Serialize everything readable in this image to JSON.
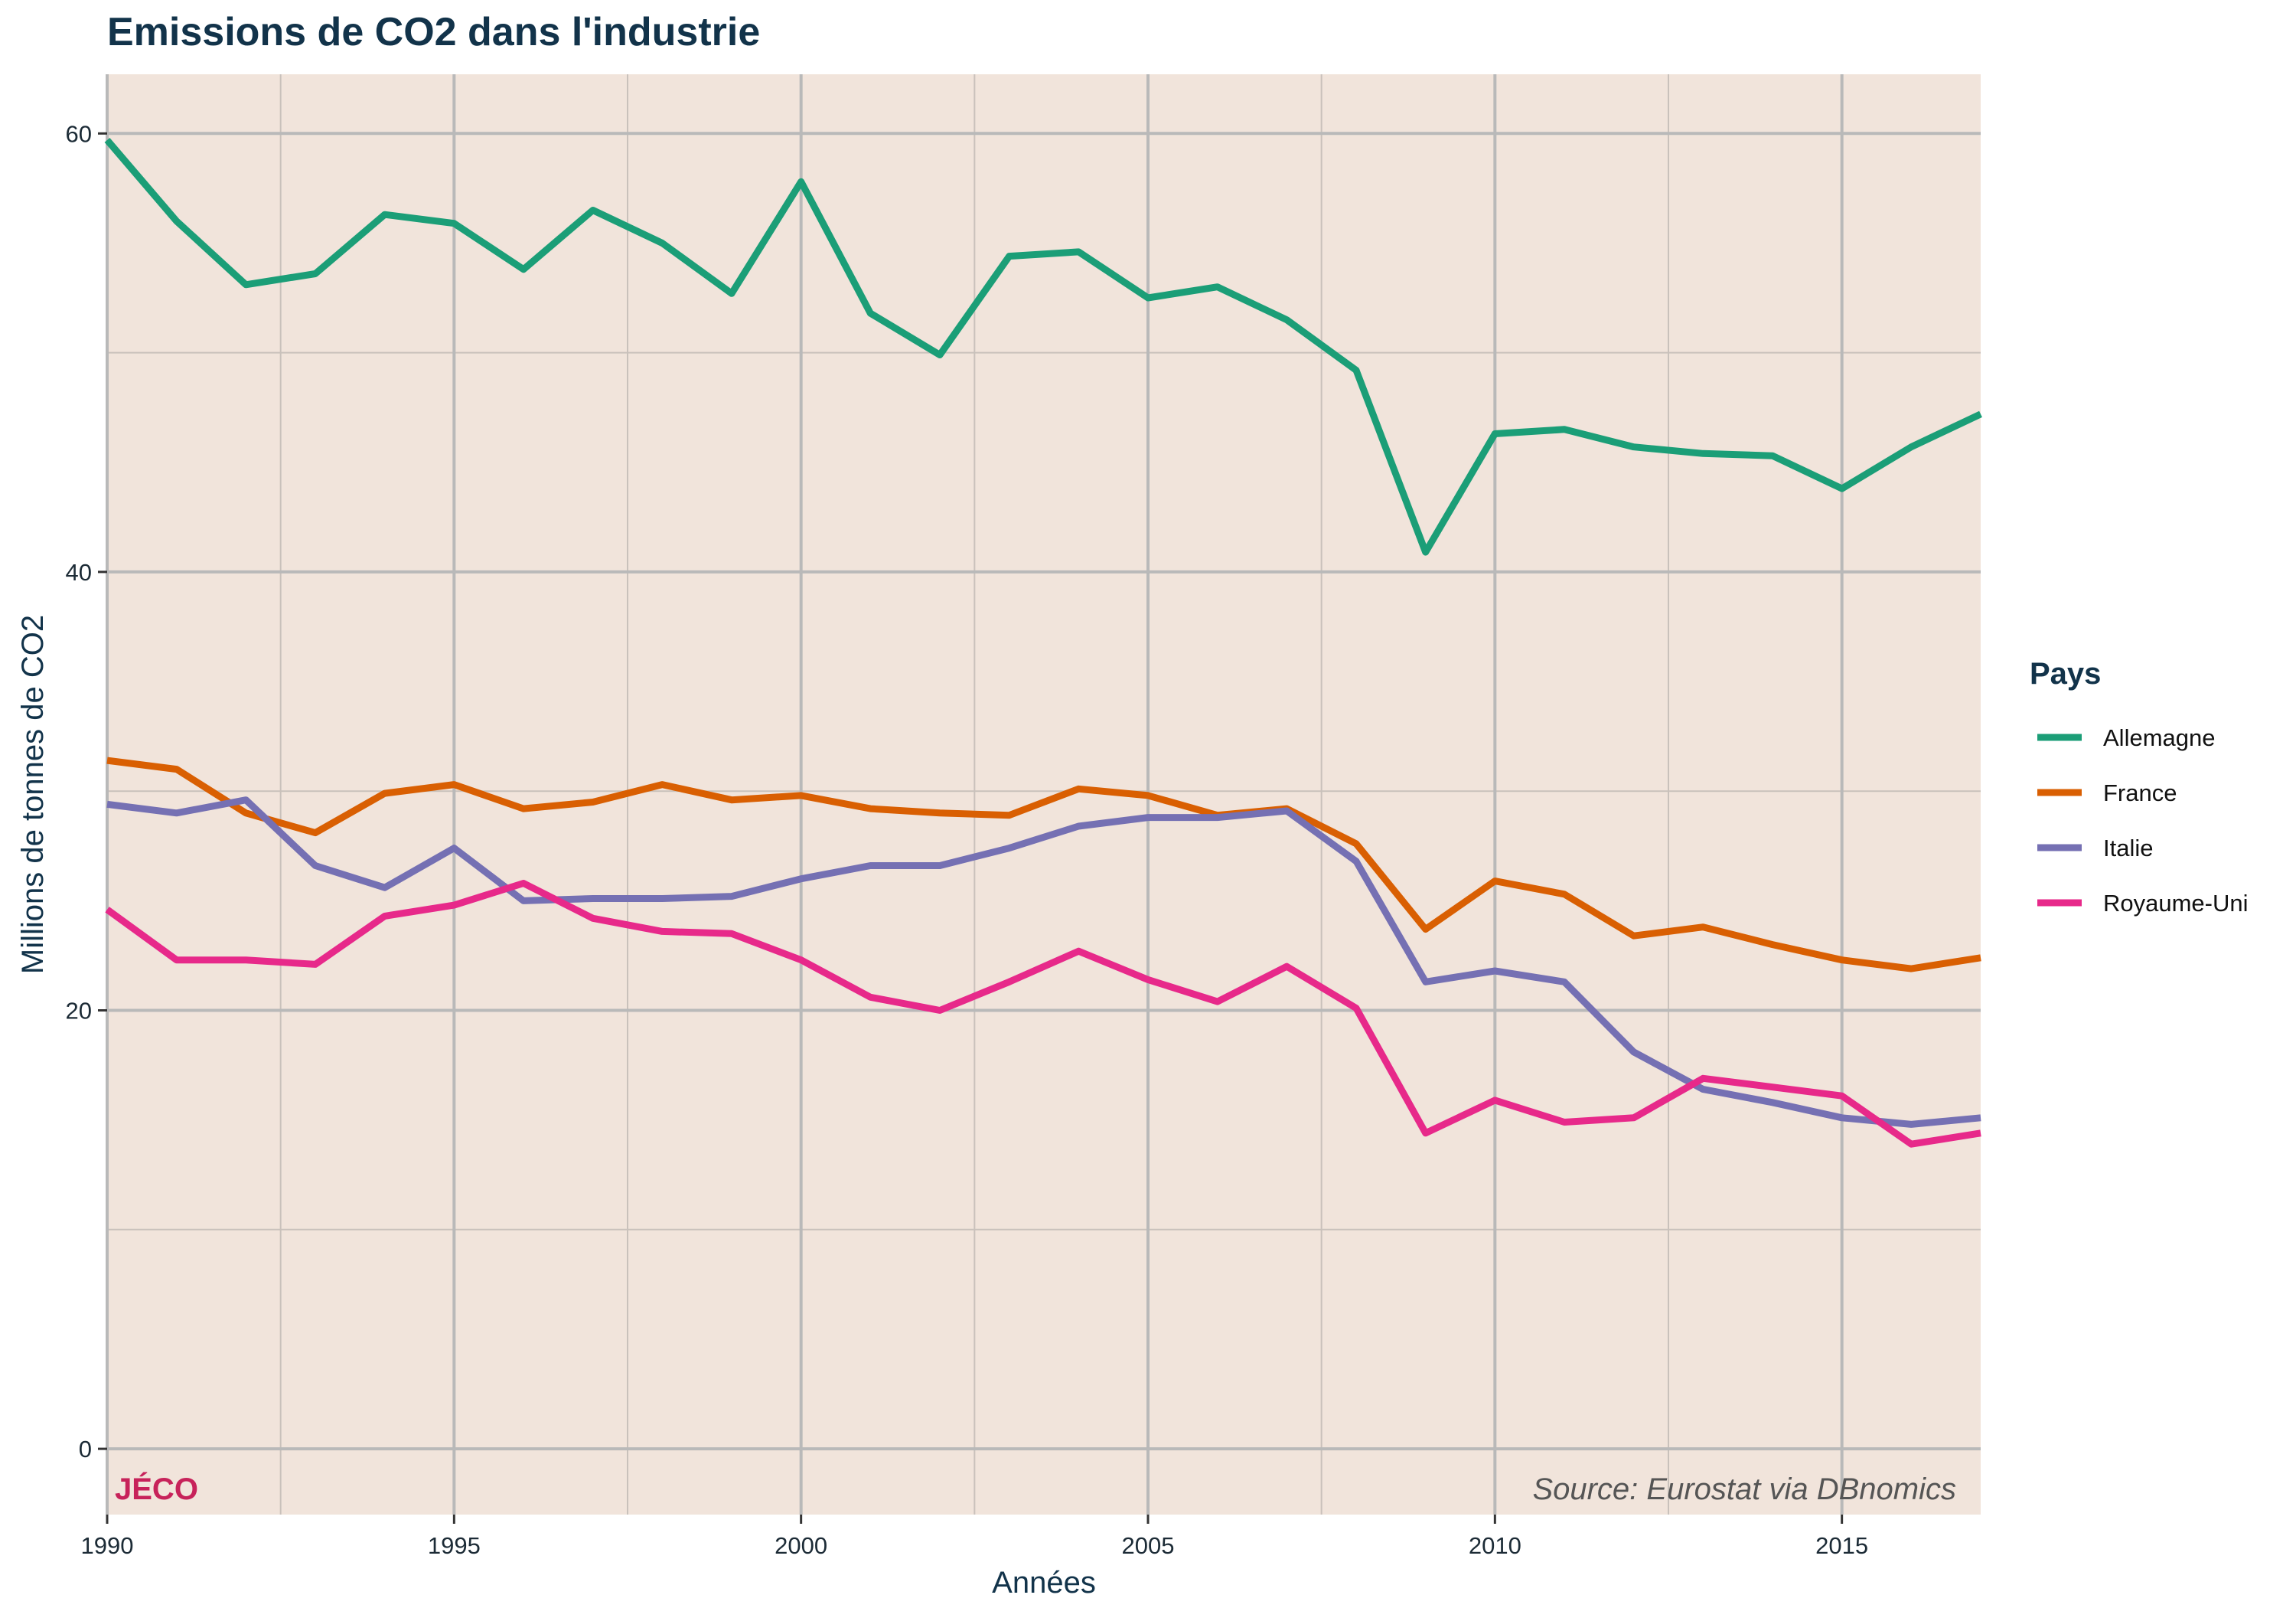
{
  "chart_data": {
    "type": "line",
    "title": "Emissions de CO2 dans l'industrie",
    "xlabel": "Années",
    "ylabel": "Millions de tonnes de CO2",
    "xlim": [
      1990,
      2017
    ],
    "ylim": [
      -3,
      62.7
    ],
    "x_ticks": [
      1990,
      1995,
      2000,
      2005,
      2010,
      2015
    ],
    "y_ticks": [
      0,
      20,
      40,
      60
    ],
    "grid": true,
    "legend": {
      "title": "Pays",
      "position": "right"
    },
    "x": [
      1990,
      1991,
      1992,
      1993,
      1994,
      1995,
      1996,
      1997,
      1998,
      1999,
      2000,
      2001,
      2002,
      2003,
      2004,
      2005,
      2006,
      2007,
      2008,
      2009,
      2010,
      2011,
      2012,
      2013,
      2014,
      2015,
      2016,
      2017
    ],
    "series": [
      {
        "name": "Allemagne",
        "color": "#1b9e77",
        "values": [
          59.7,
          56.0,
          53.1,
          53.6,
          56.3,
          55.9,
          53.8,
          56.5,
          55.0,
          52.7,
          57.8,
          51.8,
          49.9,
          54.4,
          54.6,
          52.5,
          53.0,
          51.5,
          49.2,
          40.9,
          46.3,
          46.5,
          45.7,
          45.4,
          45.3,
          43.8,
          45.7,
          47.2
        ]
      },
      {
        "name": "France",
        "color": "#d95f02",
        "values": [
          31.4,
          31.0,
          29.0,
          28.1,
          29.9,
          30.3,
          29.2,
          29.5,
          30.3,
          29.6,
          29.8,
          29.2,
          29.0,
          28.9,
          30.1,
          29.8,
          28.9,
          29.2,
          27.6,
          23.7,
          25.9,
          25.3,
          23.4,
          23.8,
          23.0,
          22.3,
          21.9,
          22.4
        ]
      },
      {
        "name": "Italie",
        "color": "#7570b3",
        "values": [
          29.4,
          29.0,
          29.6,
          26.6,
          25.6,
          27.4,
          25.0,
          25.1,
          25.1,
          25.2,
          26.0,
          26.6,
          26.6,
          27.4,
          28.4,
          28.8,
          28.8,
          29.1,
          26.8,
          21.3,
          21.8,
          21.3,
          18.1,
          16.4,
          15.8,
          15.1,
          14.8,
          15.1
        ]
      },
      {
        "name": "Royaume-Uni",
        "color": "#e7298a",
        "values": [
          24.6,
          22.3,
          22.3,
          22.1,
          24.3,
          24.8,
          25.8,
          24.2,
          23.6,
          23.5,
          22.3,
          20.6,
          20.0,
          21.3,
          22.7,
          21.4,
          20.4,
          22.0,
          20.1,
          14.4,
          15.9,
          14.9,
          15.1,
          16.9,
          16.5,
          16.1,
          13.9,
          14.4
        ]
      }
    ]
  },
  "logo_text": "JÉCO",
  "source_text": "Source: Eurostat via DBnomics",
  "colors": {
    "panel_background": "#f1e4db",
    "grid_major": "#b9b9b9",
    "grid_minor": "#c9c1bb",
    "title": "#12334a",
    "logo": "#c7225a"
  }
}
